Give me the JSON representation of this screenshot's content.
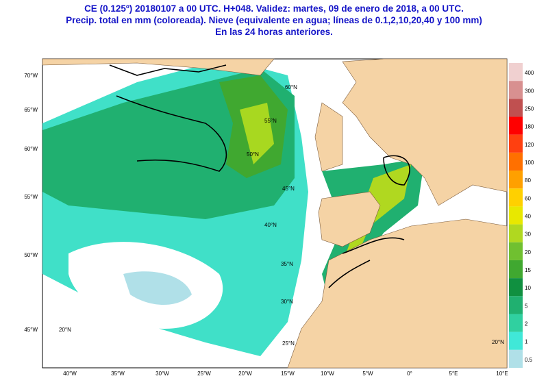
{
  "header": {
    "lines": [
      "CE (0.125º) 20180107 a 00 UTC.  H+048. Validez: martes, 09 de enero de 2018,  a  00 UTC.",
      "Precip. total en mm (coloreada). Nieve (equivalente en agua; líneas de 0.1,2,10,20,40 y 100 mm)",
      "En las 24 horas anteriores."
    ]
  },
  "map": {
    "left_labels": [
      "70°W",
      "65°W",
      "60°W",
      "55°W",
      "50°W",
      "45°W"
    ],
    "bottom_labels": [
      "40°W",
      "35°W",
      "30°W",
      "25°W",
      "20°W",
      "15°W",
      "10°W",
      "5°W",
      "0°",
      "5°E",
      "10°E"
    ],
    "grid_labels": [
      "60°N",
      "55°N",
      "50°N",
      "45°N",
      "40°N",
      "35°N",
      "30°N",
      "25°N",
      "20°N",
      "20°N"
    ]
  },
  "colorbar": {
    "labels": [
      "400",
      "300",
      "250",
      "180",
      "120",
      "100",
      "80",
      "60",
      "40",
      "30",
      "20",
      "15",
      "10",
      "5",
      "2",
      "1",
      "0.5"
    ],
    "colors": [
      "#f0d0d0",
      "#d89090",
      "#c05050",
      "#ff0000",
      "#ff4010",
      "#ff7000",
      "#ffa000",
      "#ffd000",
      "#e8e800",
      "#b0d820",
      "#70c030",
      "#40a830",
      "#109040",
      "#20b070",
      "#30d0a0",
      "#40e8d8",
      "#b0e0e8"
    ]
  }
}
